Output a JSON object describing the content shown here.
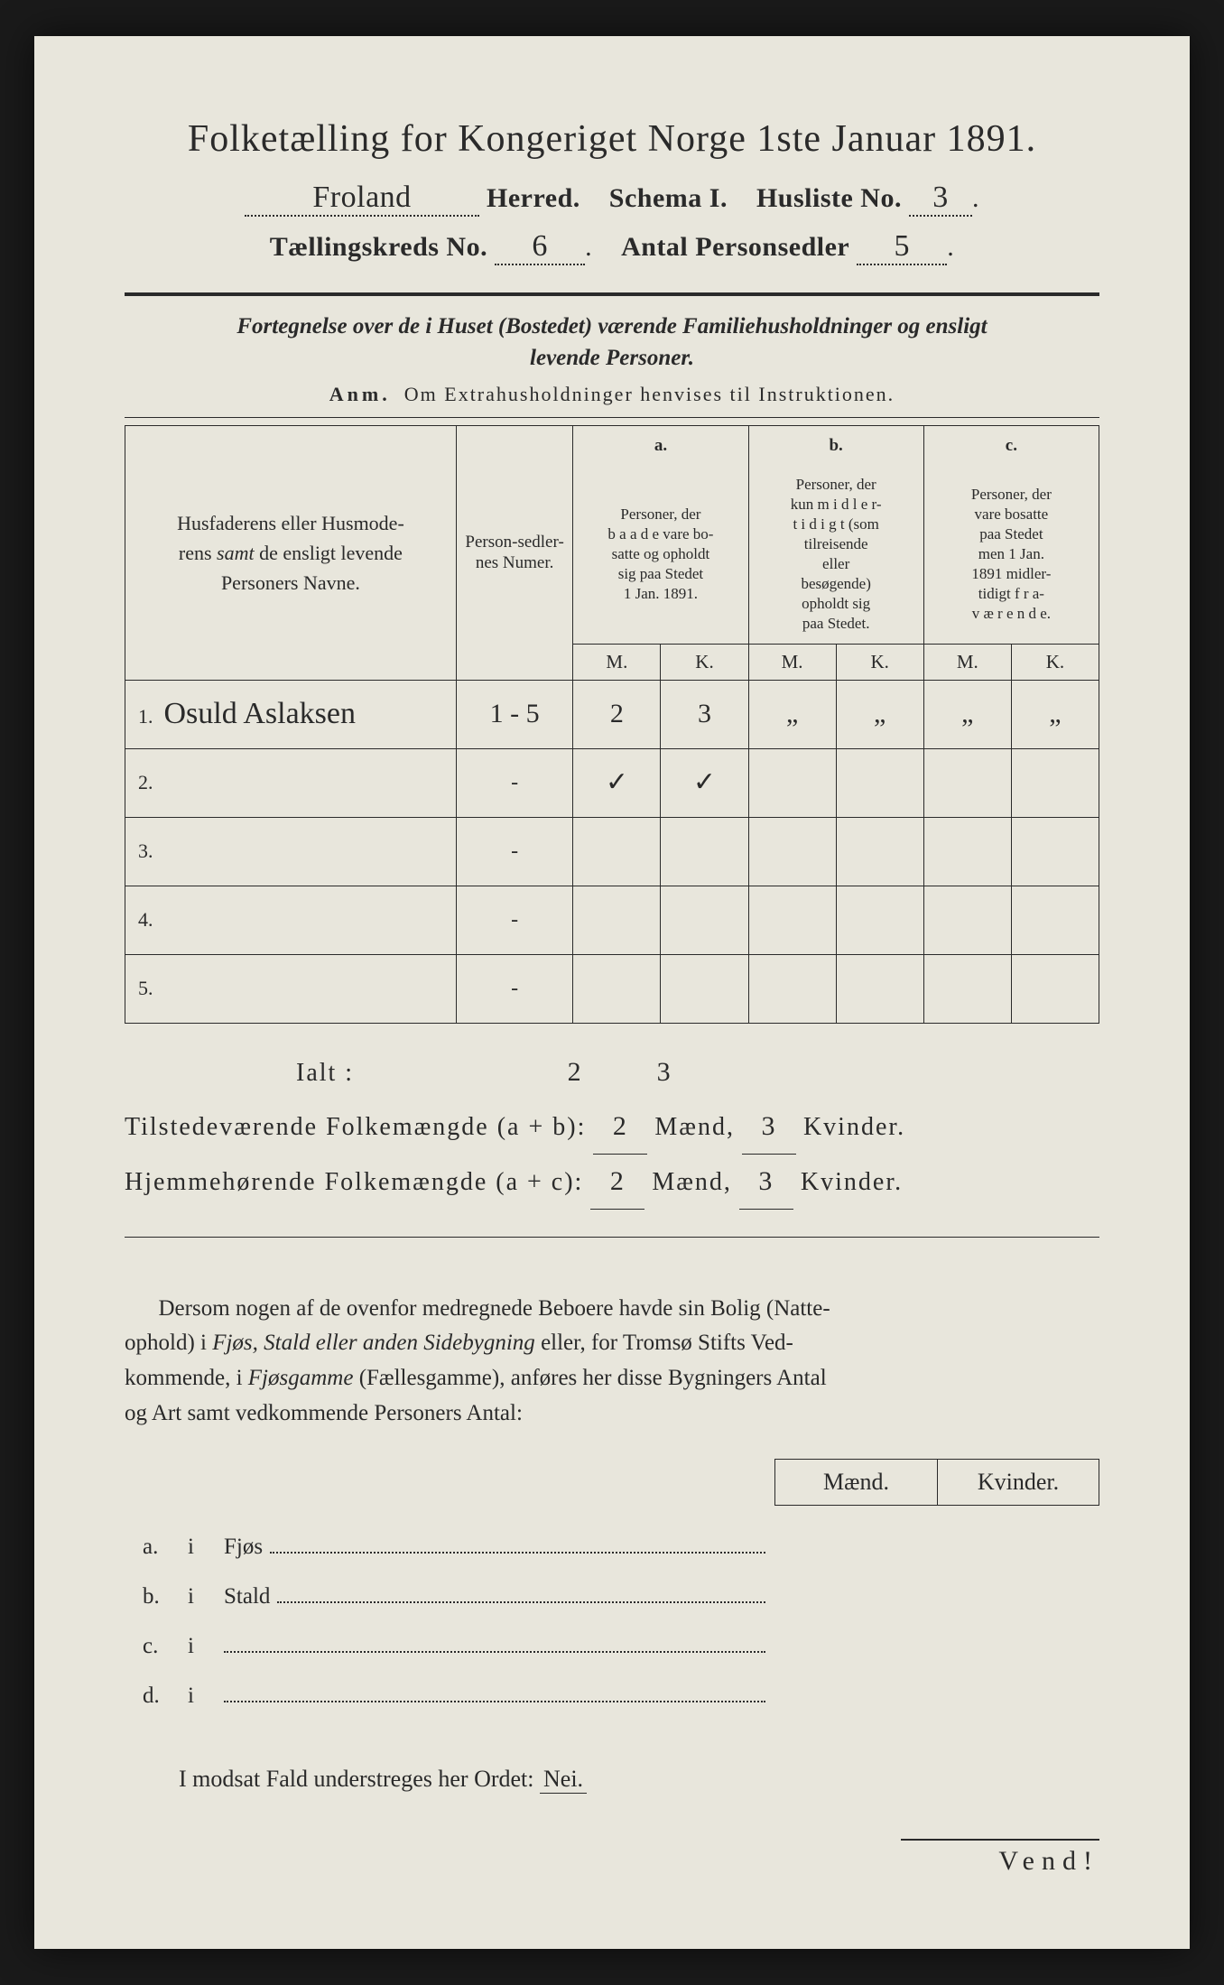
{
  "title": "Folketælling for Kongeriget Norge 1ste Januar 1891.",
  "header": {
    "herred_value": "Froland",
    "herred_label": "Herred.",
    "schema_label": "Schema I.",
    "husliste_label": "Husliste No.",
    "husliste_value": "3",
    "kreds_label": "Tællingskreds No.",
    "kreds_value": "6",
    "sedler_label": "Antal Personsedler",
    "sedler_value": "5"
  },
  "intro_line1": "Fortegnelse over de i Huset (Bostedet) værende Familiehusholdninger og ensligt",
  "intro_line2": "levende Personer.",
  "anm_prefix": "Anm.",
  "anm_text": "Om Extrahusholdninger henvises til Instruktionen.",
  "thead": {
    "names": "Husfaderens eller Husmoderens samt de ensligt levende Personers Navne.",
    "numer": "Person-sedler-nes Numer.",
    "a_top": "a.",
    "a": "Personer, der baade vare bosatte og opholdt sig paa Stedet 1 Jan. 1891.",
    "b_top": "b.",
    "b": "Personer, der kun midler-tidigt (som tilreisende eller besøgende) opholdt sig paa Stedet.",
    "c_top": "c.",
    "c": "Personer, der vare bosatte paa Stedet men 1 Jan. 1891 midler-tidigt fra-værende.",
    "M": "M.",
    "K": "K."
  },
  "rows": [
    {
      "n": "1.",
      "name": "Osuld Aslaksen",
      "numer": "1 - 5",
      "aM": "2",
      "aK": "3",
      "bM": "„",
      "bK": "„",
      "cM": "„",
      "cK": "„"
    },
    {
      "n": "2.",
      "name": "",
      "numer": "-",
      "aM": "✓",
      "aK": "✓",
      "bM": "",
      "bK": "",
      "cM": "",
      "cK": ""
    },
    {
      "n": "3.",
      "name": "",
      "numer": "-",
      "aM": "",
      "aK": "",
      "bM": "",
      "bK": "",
      "cM": "",
      "cK": ""
    },
    {
      "n": "4.",
      "name": "",
      "numer": "-",
      "aM": "",
      "aK": "",
      "bM": "",
      "bK": "",
      "cM": "",
      "cK": ""
    },
    {
      "n": "5.",
      "name": "",
      "numer": "-",
      "aM": "",
      "aK": "",
      "bM": "",
      "bK": "",
      "cM": "",
      "cK": ""
    }
  ],
  "totals": {
    "ialt_label": "Ialt :",
    "ialt_M": "2",
    "ialt_K": "3",
    "tilst_label": "Tilstedeværende Folkemængde (a + b):",
    "tilst_M": "2",
    "tilst_K": "3",
    "hjem_label": "Hjemmehørende Folkemængde (a + c):",
    "hjem_M": "2",
    "hjem_K": "3",
    "maend": "Mænd,",
    "kvinder": "Kvinder."
  },
  "para": "Dersom nogen af de ovenfor medregnede Beboere havde sin Bolig (Natteophold) i Fjøs, Stald eller anden Sidebygning eller, for Tromsø Stifts Vedkommende, i Fjøsgamme (Fællesgamme), anføres her disse Bygningers Antal og Art samt vedkommende Personers Antal:",
  "mk": {
    "m": "Mænd.",
    "k": "Kvinder."
  },
  "abcd": {
    "a": "a.",
    "b": "b.",
    "c": "c.",
    "d": "d.",
    "i": "i",
    "fjos": "Fjøs",
    "stald": "Stald"
  },
  "nei": "I modsat Fald understreges her Ordet:",
  "nei_word": "Nei.",
  "vend": "Vend!"
}
